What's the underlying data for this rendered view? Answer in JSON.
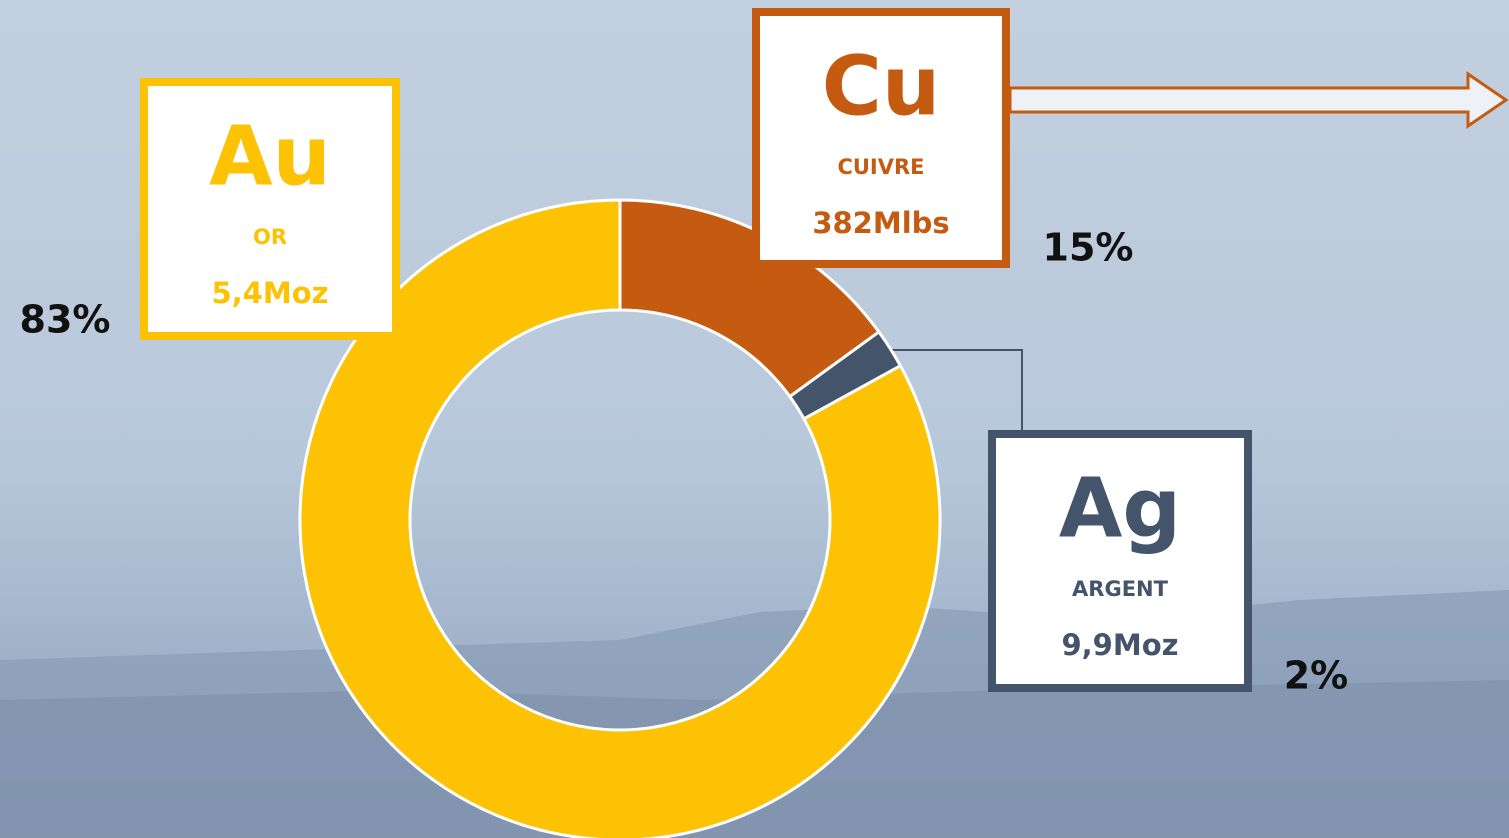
{
  "chart_data": {
    "type": "pie",
    "categories": [
      "Cu",
      "Ag",
      "Au"
    ],
    "names": [
      "CUIVRE",
      "ARGENT",
      "OR"
    ],
    "amounts": [
      "382Mlbs",
      "9,9Moz",
      "5,4Moz"
    ],
    "values": [
      15,
      2,
      83
    ],
    "value_labels": [
      "15%",
      "2%",
      "83%"
    ],
    "colors": [
      "#c55a11",
      "#44546a",
      "#fcc203"
    ]
  }
}
